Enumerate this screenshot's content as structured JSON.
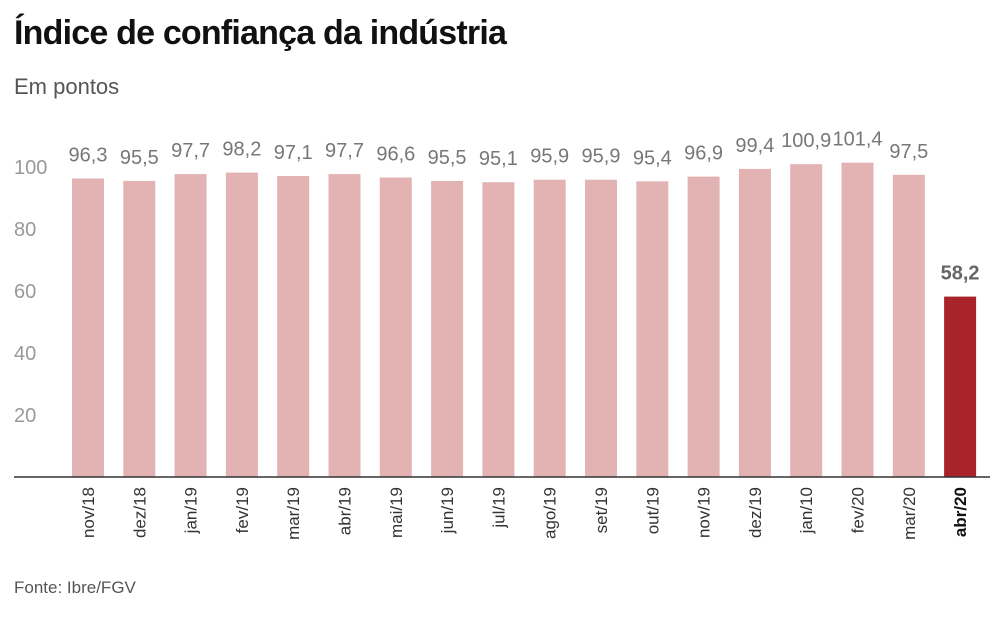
{
  "header": {
    "title": "Índice de confiança da indústria",
    "subtitle": "Em pontos"
  },
  "footer": {
    "source": "Fonte: Ibre/FGV"
  },
  "colors": {
    "bar": "#e3b3b3",
    "highlight_bar": "#a8232a",
    "axis": "#333333"
  },
  "chart_data": {
    "type": "bar",
    "title": "Índice de confiança da indústria",
    "subtitle": "Em pontos",
    "categories": [
      "nov/18",
      "dez/18",
      "jan/19",
      "fev/19",
      "mar/19",
      "abr/19",
      "mai/19",
      "jun/19",
      "jul/19",
      "ago/19",
      "set/19",
      "out/19",
      "nov/19",
      "dez/19",
      "jan/10",
      "fev/20",
      "mar/20",
      "abr/20"
    ],
    "values": [
      96.3,
      95.5,
      97.7,
      98.2,
      97.1,
      97.7,
      96.6,
      95.5,
      95.1,
      95.9,
      95.9,
      95.4,
      96.9,
      99.4,
      100.9,
      101.4,
      97.5,
      58.2
    ],
    "value_labels": [
      "96,3",
      "95,5",
      "97,7",
      "98,2",
      "97,1",
      "97,7",
      "96,6",
      "95,5",
      "95,1",
      "95,9",
      "95,9",
      "95,4",
      "96,9",
      "99,4",
      "100,9",
      "101,4",
      "97,5",
      "58,2"
    ],
    "highlight_index": 17,
    "yticks": [
      20,
      40,
      60,
      80,
      100
    ],
    "ylim": [
      0,
      105
    ],
    "xlabel": "",
    "ylabel": "",
    "grid": false,
    "legend": "none"
  }
}
